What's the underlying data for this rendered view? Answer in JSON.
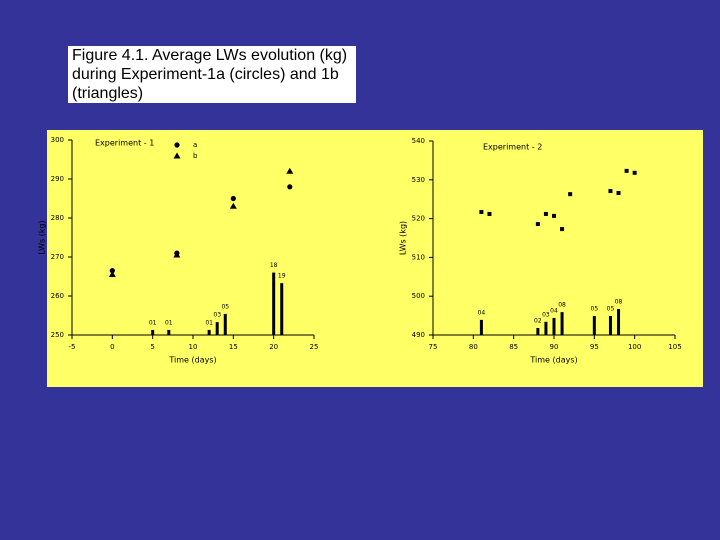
{
  "caption": "Figure 4.1. Average LWs evolution (kg) during Experiment-1a (circles) and 1b (triangles)",
  "chart_data": [
    {
      "type": "scatter",
      "title": "Experiment - 1",
      "xlabel": "Time (days)",
      "ylabel": "LWs (kg)",
      "xlim": [
        -5,
        25
      ],
      "xticks": [
        -5,
        0,
        5,
        10,
        15,
        20,
        25
      ],
      "ylim": [
        250,
        300
      ],
      "yticks": [
        250,
        260,
        270,
        280,
        290,
        300
      ],
      "series": [
        {
          "name": "a",
          "marker": "circle",
          "color": "#000000",
          "x": [
            0,
            8,
            15,
            22
          ],
          "values": [
            266.5,
            271,
            285,
            288
          ]
        },
        {
          "name": "b",
          "marker": "triangle",
          "color": "#000000",
          "x": [
            0,
            8,
            15,
            22
          ],
          "values": [
            265.5,
            270.5,
            283,
            292
          ]
        },
        {
          "marker": "bar",
          "color": "#000000",
          "x": [
            5,
            7,
            12,
            13,
            14,
            20,
            21
          ],
          "values": [
            251.3,
            251.3,
            251.3,
            253.3,
            255.4,
            266,
            263.3
          ],
          "labels": [
            "01",
            "01",
            "01",
            "03",
            "05",
            "18",
            "19"
          ]
        }
      ]
    },
    {
      "type": "scatter",
      "title": "Experiment - 2",
      "xlabel": "Time (days)",
      "ylabel": "LWs (kg)",
      "xlim": [
        75,
        105
      ],
      "xticks": [
        75,
        80,
        85,
        90,
        95,
        100,
        105
      ],
      "ylim": [
        490,
        540
      ],
      "yticks": [
        490,
        500,
        510,
        520,
        530,
        540
      ],
      "series": [
        {
          "marker": "square",
          "color": "#000000",
          "x": [
            81,
            82,
            88,
            89,
            90,
            91,
            92,
            97,
            98,
            99,
            100
          ],
          "values": [
            521.7,
            521.2,
            518.6,
            521.2,
            520.7,
            517.3,
            526.3,
            527.1,
            526.6,
            532.3,
            531.8
          ]
        },
        {
          "marker": "bar",
          "color": "#000000",
          "x": [
            81,
            88,
            89,
            90,
            91,
            95,
            97,
            98
          ],
          "values": [
            493.9,
            491.8,
            493.4,
            494.4,
            495.9,
            494.9,
            494.9,
            496.7
          ],
          "labels": [
            "04",
            "02",
            "03",
            "04",
            "08",
            "05",
            "05",
            "08"
          ]
        }
      ]
    }
  ]
}
